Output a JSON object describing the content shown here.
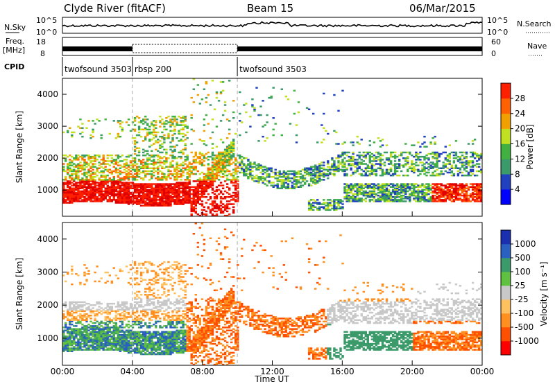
{
  "header": {
    "station": "Clyde River (fitACF)",
    "beam": "Beam 15",
    "date": "06/Mar/2015"
  },
  "noise_panel": {
    "left_label": "N.Sky",
    "right_label": "N.Search",
    "left_ticks": [
      "10^5",
      "10^0"
    ],
    "right_ticks": [
      "10^5",
      "10^0"
    ]
  },
  "freq_panel": {
    "left_label_1": "Freq.",
    "left_label_2": "[MHz]",
    "left_ticks": [
      "18",
      "8"
    ],
    "right_label": "Nave",
    "right_ticks": [
      "60",
      "0"
    ]
  },
  "cpid": {
    "label": "CPID",
    "segments": [
      {
        "start": 0,
        "end": 4,
        "name": "twofsound 3503"
      },
      {
        "start": 4,
        "end": 10,
        "name": "rbsp 200"
      },
      {
        "start": 10,
        "end": 24,
        "name": "twofsound 3503"
      }
    ]
  },
  "colors": {
    "power": [
      "#0000ff",
      "#2040c0",
      "#3a9a6a",
      "#40b040",
      "#c0e020",
      "#f0a000",
      "#ff6000",
      "#ff2000",
      "#e00000"
    ],
    "velocity": [
      "#ff0000",
      "#ff5000",
      "#ff9020",
      "#ffc060",
      "#c8c8c8",
      "#60c040",
      "#3a9a6a",
      "#2a60c0",
      "#1a30b0"
    ]
  },
  "chart_data": [
    {
      "type": "heatmap",
      "name": "power",
      "ylabel": "Slant Range [km]",
      "ylim": [
        180,
        4500
      ],
      "yticks": [
        1000,
        2000,
        3000,
        4000
      ],
      "xlim": [
        0,
        24
      ],
      "colorbar_label": "Power [dB]",
      "colorbar_ticks": [
        "4",
        "8",
        "12",
        "16",
        "20",
        "24",
        "28"
      ],
      "scale": [
        0,
        32
      ]
    },
    {
      "type": "heatmap",
      "name": "velocity",
      "ylabel": "Slant Range [km]",
      "ylim": [
        180,
        4500
      ],
      "yticks": [
        1000,
        2000,
        3000,
        4000
      ],
      "xlim": [
        0,
        24
      ],
      "xlabel": "Time UT",
      "xticks": [
        "00:00",
        "04:00",
        "08:00",
        "12:00",
        "16:00",
        "20:00",
        "00:00"
      ],
      "colorbar_label": "Velocity [m s⁻¹]",
      "colorbar_ticks": [
        "-1000",
        "-500",
        "-100",
        "-25",
        "25",
        "100",
        "500",
        "1000"
      ]
    }
  ]
}
